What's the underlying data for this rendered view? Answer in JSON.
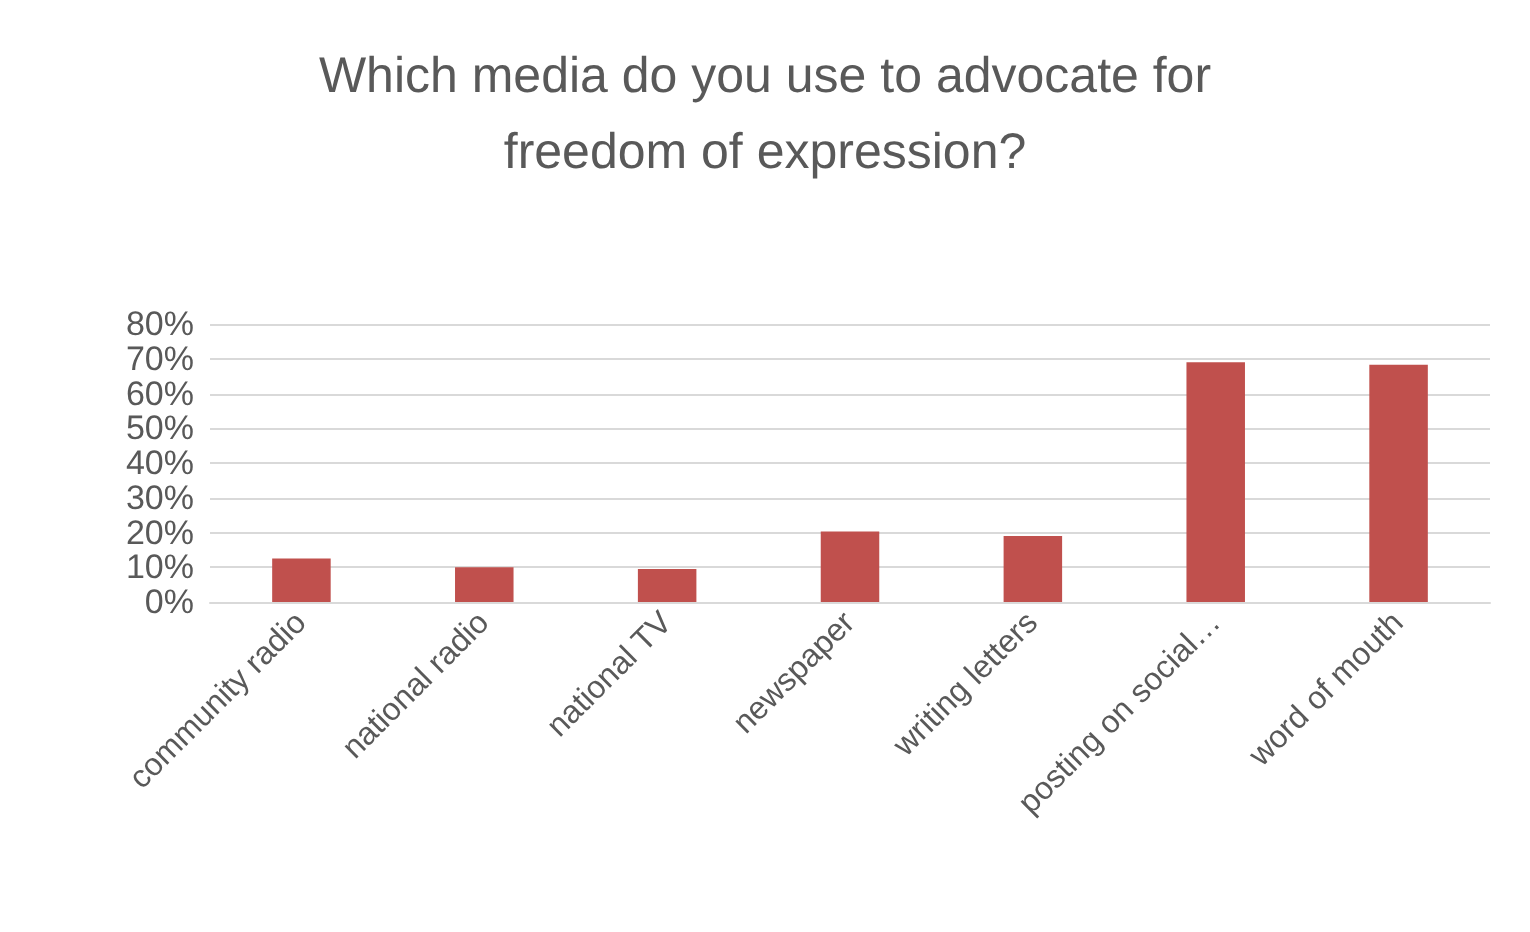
{
  "chart_data": {
    "type": "bar",
    "title": "Which media do you use to advocate for\nfreedom of expression?",
    "categories": [
      "community radio",
      "national radio",
      "national TV",
      "newspaper",
      "writing letters",
      "posting on social…",
      "word of mouth"
    ],
    "values": [
      12.5,
      10,
      9.5,
      20.3,
      19,
      69,
      68.3
    ],
    "color": "#c0504d",
    "ylim": [
      0,
      80
    ],
    "yticks": [
      {
        "value": 0,
        "label": "0%"
      },
      {
        "value": 10,
        "label": "10%"
      },
      {
        "value": 20,
        "label": "20%"
      },
      {
        "value": 30,
        "label": "30%"
      },
      {
        "value": 40,
        "label": "40%"
      },
      {
        "value": 50,
        "label": "50%"
      },
      {
        "value": 60,
        "label": "60%"
      },
      {
        "value": 70,
        "label": "70%"
      },
      {
        "value": 80,
        "label": "80%"
      }
    ],
    "grid": true
  }
}
